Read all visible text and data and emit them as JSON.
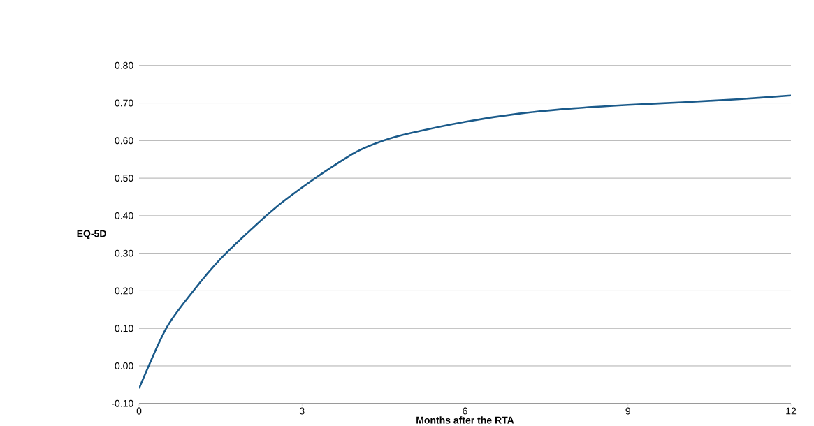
{
  "chart_data": {
    "type": "line",
    "xlabel": "Months after the RTA",
    "ylabel": "EQ-5D",
    "x": [
      0,
      0.5,
      1,
      1.5,
      2,
      2.5,
      3,
      3.5,
      4,
      4.5,
      5,
      6,
      7,
      8,
      9,
      10,
      11,
      12
    ],
    "series": [
      {
        "color": "#1a5a8a",
        "values": [
          -0.06,
          0.1,
          0.2,
          0.285,
          0.355,
          0.42,
          0.475,
          0.525,
          0.57,
          0.6,
          0.62,
          0.65,
          0.672,
          0.686,
          0.695,
          0.702,
          0.71,
          0.72
        ]
      }
    ],
    "xlim": [
      0,
      12
    ],
    "xticks": [
      0,
      3,
      6,
      9,
      12
    ],
    "ylim": [
      -0.1,
      0.8
    ],
    "yticks": [
      {
        "value": -0.1,
        "label": "-0.10"
      },
      {
        "value": 0,
        "label": "0.00"
      },
      {
        "value": 0.1,
        "label": "0.10"
      },
      {
        "value": 0.2,
        "label": "0.20"
      },
      {
        "value": 0.3,
        "label": "0.30"
      },
      {
        "value": 0.4,
        "label": "0.40"
      },
      {
        "value": 0.5,
        "label": "0.50"
      },
      {
        "value": 0.6,
        "label": "0.60"
      },
      {
        "value": 0.7,
        "label": "0.70"
      },
      {
        "value": 0.8,
        "label": "0.80"
      }
    ],
    "grid": "y"
  }
}
